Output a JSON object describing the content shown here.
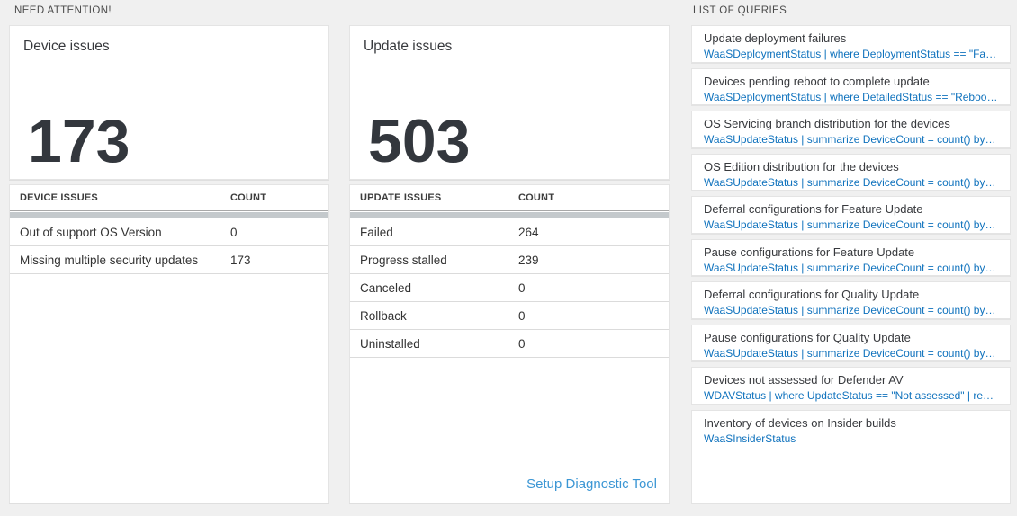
{
  "colors": {
    "page_background": "#f0f0f0",
    "query_text_blue": "#0f72bd",
    "footer_link_blue": "#3b96d4",
    "big_number_color": "#33373d",
    "scrollbar_gray": "#c4c9cc"
  },
  "need_attention": {
    "header": "NEED ATTENTION!",
    "device_tile": {
      "title": "Device issues",
      "count": "173"
    },
    "device_table": {
      "col_name": "DEVICE ISSUES",
      "col_count": "COUNT",
      "rows": [
        {
          "name": "Out of support OS Version",
          "count": "0"
        },
        {
          "name": "Missing multiple security updates",
          "count": "173"
        }
      ]
    },
    "update_tile": {
      "title": "Update issues",
      "count": "503"
    },
    "update_table": {
      "col_name": "UPDATE ISSUES",
      "col_count": "COUNT",
      "rows": [
        {
          "name": "Failed",
          "count": "264"
        },
        {
          "name": "Progress stalled",
          "count": "239"
        },
        {
          "name": "Canceled",
          "count": "0"
        },
        {
          "name": "Rollback",
          "count": "0"
        },
        {
          "name": "Uninstalled",
          "count": "0"
        }
      ],
      "footer_link": "Setup Diagnostic Tool"
    }
  },
  "queries": {
    "header": "LIST OF QUERIES",
    "items": [
      {
        "title": "Update deployment failures",
        "query": "WaaSDeploymentStatus | where DeploymentStatus == \"Failed\" |..."
      },
      {
        "title": "Devices pending reboot to complete update",
        "query": "WaaSDeploymentStatus | where DetailedStatus == \"Reboot pend..."
      },
      {
        "title": "OS Servicing branch distribution for the devices",
        "query": "WaaSUpdateStatus | summarize DeviceCount = count() by OSSer..."
      },
      {
        "title": "OS Edition distribution for the devices",
        "query": "WaaSUpdateStatus | summarize DeviceCount = count() by OSEdit..."
      },
      {
        "title": "Deferral configurations for Feature Update",
        "query": "WaaSUpdateStatus | summarize DeviceCount = count() by Featur..."
      },
      {
        "title": "Pause configurations for Feature Update",
        "query": "WaaSUpdateStatus | summarize DeviceCount = count() by Featur..."
      },
      {
        "title": "Deferral configurations for Quality Update",
        "query": "WaaSUpdateStatus | summarize DeviceCount = count() by Qualit..."
      },
      {
        "title": "Pause configurations for Quality Update",
        "query": "WaaSUpdateStatus | summarize DeviceCount = count() by Qualit..."
      },
      {
        "title": "Devices not assessed for Defender AV",
        "query": "WDAVStatus | where UpdateStatus == \"Not assessed\" | render ta..."
      },
      {
        "title": "Inventory of devices on Insider builds",
        "query": "WaaSInsiderStatus"
      }
    ]
  }
}
